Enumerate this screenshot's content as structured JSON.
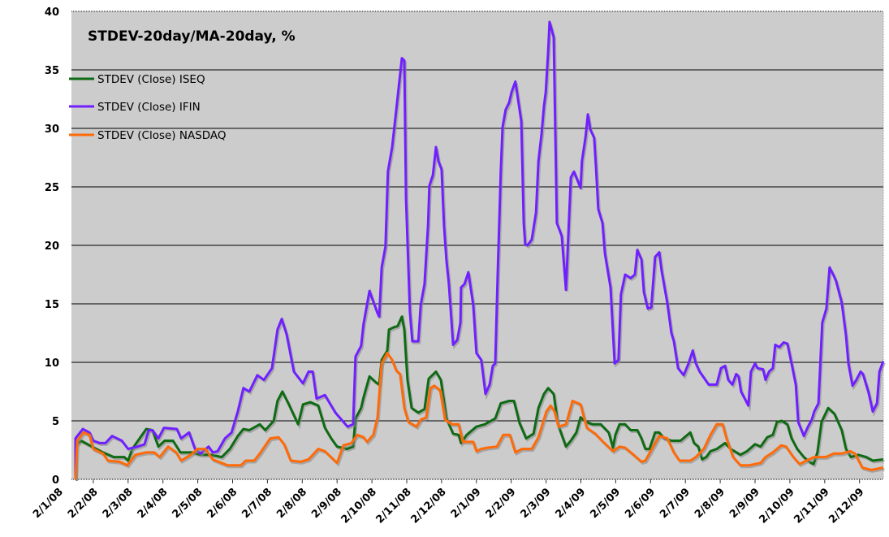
{
  "chart_data": {
    "type": "line",
    "title": "STDEV-20day/MA-20day, %",
    "xlabel": "",
    "ylabel": "",
    "x_unit": "months since 2/1/08",
    "xlim": [
      0.37,
      23.7
    ],
    "ylim": [
      0,
      40
    ],
    "yticks": [
      0,
      5,
      10,
      15,
      20,
      25,
      30,
      35,
      40
    ],
    "grid": true,
    "legend_position": "top-left",
    "xtick_labels": [
      "2/1/08",
      "2/2/08",
      "2/3/08",
      "2/4/08",
      "2/5/08",
      "2/6/08",
      "2/7/08",
      "2/8/08",
      "2/9/08",
      "2/10/08",
      "2/11/08",
      "2/12/08",
      "2/1/09",
      "2/2/09",
      "2/3/09",
      "2/4/09",
      "2/5/09",
      "2/6/09",
      "2/7/09",
      "2/8/09",
      "2/9/09",
      "2/10/09",
      "2/11/09",
      "2/12/09"
    ],
    "series": [
      {
        "name": "STDEV (Close) ISEQ",
        "color": "#0f6a14",
        "x": [
          0.49,
          0.65,
          0.96,
          1.28,
          1.59,
          1.89,
          2.0,
          2.12,
          2.52,
          2.7,
          2.87,
          3.05,
          3.29,
          3.5,
          3.85,
          4.08,
          4.38,
          4.69,
          4.92,
          5.15,
          5.31,
          5.48,
          5.78,
          5.94,
          6.18,
          6.29,
          6.43,
          6.6,
          6.88,
          7.02,
          7.23,
          7.46,
          7.65,
          7.83,
          8.0,
          8.28,
          8.46,
          8.53,
          8.69,
          8.76,
          8.93,
          9.11,
          9.21,
          9.28,
          9.44,
          9.49,
          9.63,
          9.74,
          9.86,
          9.93,
          10.02,
          10.14,
          10.33,
          10.51,
          10.63,
          10.84,
          10.98,
          11.14,
          11.33,
          11.49,
          11.56,
          11.72,
          12.0,
          12.24,
          12.54,
          12.7,
          12.94,
          13.08,
          13.24,
          13.43,
          13.64,
          13.78,
          13.94,
          14.06,
          14.22,
          14.34,
          14.57,
          14.71,
          14.87,
          14.99,
          15.15,
          15.34,
          15.57,
          15.8,
          15.92,
          15.99,
          16.11,
          16.27,
          16.43,
          16.62,
          16.74,
          16.85,
          16.97,
          17.13,
          17.25,
          17.39,
          17.6,
          17.86,
          18.14,
          18.25,
          18.37,
          18.48,
          18.6,
          18.72,
          18.9,
          19.14,
          19.3,
          19.58,
          19.77,
          20.0,
          20.16,
          20.35,
          20.51,
          20.63,
          20.77,
          20.93,
          21.05,
          21.21,
          21.4,
          21.56,
          21.68,
          21.79,
          21.91,
          22.1,
          22.28,
          22.49,
          22.61,
          22.75,
          22.96,
          23.19,
          23.38,
          23.68
        ],
        "y": [
          2.9,
          3.3,
          2.8,
          2.3,
          1.9,
          1.9,
          1.6,
          2.6,
          4.3,
          4.2,
          2.8,
          3.3,
          3.3,
          2.3,
          2.3,
          2.1,
          2.1,
          1.9,
          2.6,
          3.7,
          4.3,
          4.2,
          4.7,
          4.2,
          5.0,
          6.7,
          7.5,
          6.5,
          4.7,
          6.4,
          6.6,
          6.3,
          4.4,
          3.5,
          2.8,
          2.6,
          2.8,
          5.2,
          6.1,
          7.0,
          8.8,
          8.3,
          8.1,
          10.2,
          11.0,
          12.8,
          13.0,
          13.1,
          13.9,
          12.8,
          8.5,
          6.1,
          5.7,
          6.0,
          8.6,
          9.2,
          8.5,
          5.2,
          3.9,
          3.8,
          3.1,
          3.8,
          4.5,
          4.7,
          5.2,
          6.5,
          6.7,
          6.7,
          4.8,
          3.5,
          3.9,
          6.1,
          7.3,
          7.8,
          7.3,
          4.7,
          2.8,
          3.3,
          4.0,
          5.3,
          4.9,
          4.7,
          4.7,
          4.0,
          2.7,
          3.8,
          4.7,
          4.7,
          4.2,
          4.2,
          3.5,
          2.6,
          2.6,
          4.0,
          4.0,
          3.5,
          3.3,
          3.3,
          4.0,
          3.1,
          2.8,
          1.7,
          1.9,
          2.4,
          2.6,
          3.1,
          2.6,
          2.1,
          2.4,
          3.0,
          2.8,
          3.6,
          3.8,
          4.9,
          5.0,
          4.7,
          3.5,
          2.6,
          1.9,
          1.5,
          1.3,
          2.3,
          4.9,
          6.1,
          5.6,
          4.2,
          2.6,
          1.9,
          2.1,
          1.9,
          1.6,
          1.7
        ]
      },
      {
        "name": "STDEV (Close) IFIN",
        "color": "#7020ff",
        "x": [
          0.49,
          0.7,
          0.89,
          1.0,
          1.19,
          1.35,
          1.54,
          1.82,
          2.0,
          2.28,
          2.47,
          2.59,
          2.7,
          2.87,
          3.03,
          3.4,
          3.52,
          3.75,
          3.92,
          4.08,
          4.31,
          4.43,
          4.57,
          4.78,
          4.97,
          5.15,
          5.31,
          5.48,
          5.71,
          5.9,
          6.13,
          6.29,
          6.41,
          6.55,
          6.76,
          7.02,
          7.18,
          7.3,
          7.41,
          7.65,
          7.95,
          8.3,
          8.46,
          8.53,
          8.69,
          8.76,
          8.93,
          9.16,
          9.21,
          9.28,
          9.39,
          9.46,
          9.58,
          9.7,
          9.86,
          9.93,
          9.98,
          10.09,
          10.16,
          10.33,
          10.4,
          10.51,
          10.61,
          10.65,
          10.75,
          10.84,
          10.91,
          11.0,
          11.07,
          11.14,
          11.21,
          11.33,
          11.45,
          11.54,
          11.56,
          11.66,
          11.77,
          11.91,
          12.0,
          12.14,
          12.26,
          12.38,
          12.47,
          12.54,
          12.61,
          12.7,
          12.75,
          12.84,
          12.94,
          13.01,
          13.12,
          13.29,
          13.36,
          13.4,
          13.47,
          13.59,
          13.71,
          13.78,
          13.87,
          13.94,
          13.99,
          14.06,
          14.1,
          14.22,
          14.31,
          14.45,
          14.57,
          14.64,
          14.71,
          14.8,
          14.87,
          14.99,
          15.03,
          15.13,
          15.2,
          15.27,
          15.38,
          15.43,
          15.5,
          15.62,
          15.69,
          15.85,
          15.97,
          16.08,
          16.15,
          16.27,
          16.43,
          16.55,
          16.62,
          16.74,
          16.81,
          16.92,
          17.02,
          17.13,
          17.25,
          17.32,
          17.48,
          17.6,
          17.67,
          17.79,
          17.95,
          18.09,
          18.21,
          18.3,
          18.41,
          18.53,
          18.67,
          18.9,
          19.02,
          19.14,
          19.23,
          19.35,
          19.46,
          19.53,
          19.6,
          19.81,
          19.88,
          20.0,
          20.07,
          20.23,
          20.3,
          20.4,
          20.51,
          20.58,
          20.7,
          20.82,
          20.93,
          21.05,
          21.17,
          21.24,
          21.4,
          21.52,
          21.63,
          21.7,
          21.82,
          21.93,
          22.05,
          22.14,
          22.26,
          22.33,
          22.49,
          22.61,
          22.68,
          22.8,
          22.91,
          23.03,
          23.1,
          23.26,
          23.38,
          23.5,
          23.57,
          23.68
        ],
        "y": [
          3.5,
          4.3,
          4.0,
          3.3,
          3.1,
          3.1,
          3.7,
          3.3,
          2.6,
          2.8,
          3.0,
          4.2,
          4.2,
          3.5,
          4.4,
          4.3,
          3.5,
          4.0,
          2.6,
          2.2,
          2.8,
          2.3,
          2.4,
          3.5,
          4.0,
          5.8,
          7.8,
          7.5,
          8.9,
          8.5,
          9.5,
          12.8,
          13.7,
          12.4,
          9.2,
          8.2,
          9.2,
          9.2,
          6.9,
          7.2,
          5.7,
          4.5,
          4.7,
          10.5,
          11.4,
          13.3,
          16.1,
          14.2,
          13.9,
          18.1,
          19.9,
          26.3,
          28.4,
          31.6,
          36.0,
          35.8,
          24.0,
          14.3,
          11.8,
          11.8,
          14.9,
          16.7,
          21.7,
          25.1,
          26.0,
          28.4,
          27.2,
          26.5,
          21.7,
          18.7,
          16.7,
          11.5,
          11.9,
          13.4,
          16.4,
          16.7,
          17.7,
          14.9,
          10.8,
          10.2,
          7.3,
          8.1,
          9.7,
          9.9,
          17.5,
          26.3,
          30.1,
          31.6,
          32.2,
          33.1,
          34.0,
          30.6,
          21.9,
          20.1,
          20.0,
          20.5,
          22.8,
          27.2,
          29.5,
          31.9,
          33.1,
          36.6,
          39.1,
          37.8,
          21.9,
          20.8,
          16.2,
          21.0,
          25.8,
          26.3,
          25.8,
          24.9,
          27.2,
          29.2,
          31.2,
          29.9,
          29.2,
          26.9,
          23.1,
          21.9,
          19.3,
          16.4,
          9.9,
          10.2,
          15.8,
          17.5,
          17.2,
          17.5,
          19.6,
          18.8,
          16.0,
          14.6,
          14.7,
          19.0,
          19.4,
          17.8,
          15.1,
          12.5,
          11.8,
          9.5,
          8.9,
          9.9,
          11.0,
          9.9,
          9.2,
          8.7,
          8.1,
          8.1,
          9.5,
          9.7,
          8.5,
          8.1,
          9.0,
          8.8,
          7.5,
          6.3,
          9.2,
          9.9,
          9.5,
          9.4,
          8.5,
          9.2,
          9.5,
          11.5,
          11.3,
          11.7,
          11.6,
          9.9,
          8.1,
          4.9,
          3.7,
          4.5,
          5.1,
          5.8,
          6.5,
          13.4,
          14.6,
          18.1,
          17.4,
          16.9,
          15.1,
          12.3,
          9.9,
          8.0,
          8.5,
          9.2,
          9.0,
          7.4,
          5.8,
          6.5,
          9.2,
          10.1
        ]
      },
      {
        "name": "STDEV (Close) NASDAQ",
        "color": "#ff6a08",
        "x": [
          0.49,
          0.54,
          0.72,
          0.89,
          1.0,
          1.28,
          1.42,
          1.75,
          1.98,
          2.21,
          2.52,
          2.75,
          2.91,
          3.15,
          3.38,
          3.52,
          3.8,
          3.99,
          4.22,
          4.43,
          4.85,
          5.24,
          5.38,
          5.62,
          5.78,
          6.08,
          6.32,
          6.48,
          6.67,
          6.95,
          7.18,
          7.46,
          7.65,
          8.0,
          8.18,
          8.41,
          8.58,
          8.76,
          8.86,
          9.04,
          9.16,
          9.28,
          9.44,
          9.58,
          9.7,
          9.81,
          9.93,
          10.05,
          10.28,
          10.4,
          10.56,
          10.68,
          10.79,
          10.96,
          11.1,
          11.31,
          11.49,
          11.61,
          11.91,
          12.0,
          12.14,
          12.31,
          12.59,
          12.77,
          12.96,
          13.12,
          13.31,
          13.59,
          13.78,
          14.01,
          14.13,
          14.24,
          14.36,
          14.57,
          14.76,
          14.99,
          15.17,
          15.41,
          15.64,
          15.92,
          16.11,
          16.27,
          16.55,
          16.74,
          16.85,
          17.04,
          17.25,
          17.48,
          17.67,
          17.83,
          18.14,
          18.3,
          18.53,
          18.72,
          18.9,
          19.07,
          19.18,
          19.37,
          19.58,
          19.84,
          20.16,
          20.3,
          20.51,
          20.75,
          20.89,
          21.1,
          21.28,
          21.47,
          21.7,
          22.03,
          22.26,
          22.49,
          22.73,
          22.87,
          23.08,
          23.33,
          23.68
        ],
        "y": [
          0.1,
          3.3,
          4.0,
          3.8,
          2.6,
          2.2,
          1.6,
          1.5,
          1.2,
          2.1,
          2.3,
          2.3,
          1.9,
          2.8,
          2.3,
          1.6,
          2.1,
          2.6,
          2.6,
          1.7,
          1.2,
          1.2,
          1.6,
          1.6,
          2.2,
          3.5,
          3.6,
          3.0,
          1.6,
          1.5,
          1.7,
          2.6,
          2.4,
          1.4,
          2.9,
          3.1,
          3.8,
          3.6,
          3.2,
          3.8,
          5.3,
          9.9,
          10.8,
          10.2,
          9.3,
          9.0,
          6.1,
          4.9,
          4.5,
          5.1,
          5.3,
          7.8,
          8.0,
          7.6,
          5.1,
          4.7,
          4.7,
          3.2,
          3.2,
          2.4,
          2.6,
          2.7,
          2.8,
          3.8,
          3.8,
          2.3,
          2.6,
          2.6,
          3.6,
          5.8,
          6.3,
          5.8,
          4.5,
          4.7,
          6.7,
          6.4,
          4.4,
          3.9,
          3.2,
          2.4,
          2.8,
          2.7,
          2.0,
          1.5,
          1.6,
          2.6,
          3.7,
          3.5,
          2.3,
          1.6,
          1.6,
          1.9,
          2.6,
          3.8,
          4.7,
          4.7,
          3.5,
          1.9,
          1.2,
          1.2,
          1.4,
          1.9,
          2.3,
          2.9,
          2.8,
          1.9,
          1.3,
          1.6,
          1.9,
          1.9,
          2.2,
          2.2,
          2.4,
          2.2,
          1.0,
          0.8,
          1.0
        ]
      }
    ]
  }
}
